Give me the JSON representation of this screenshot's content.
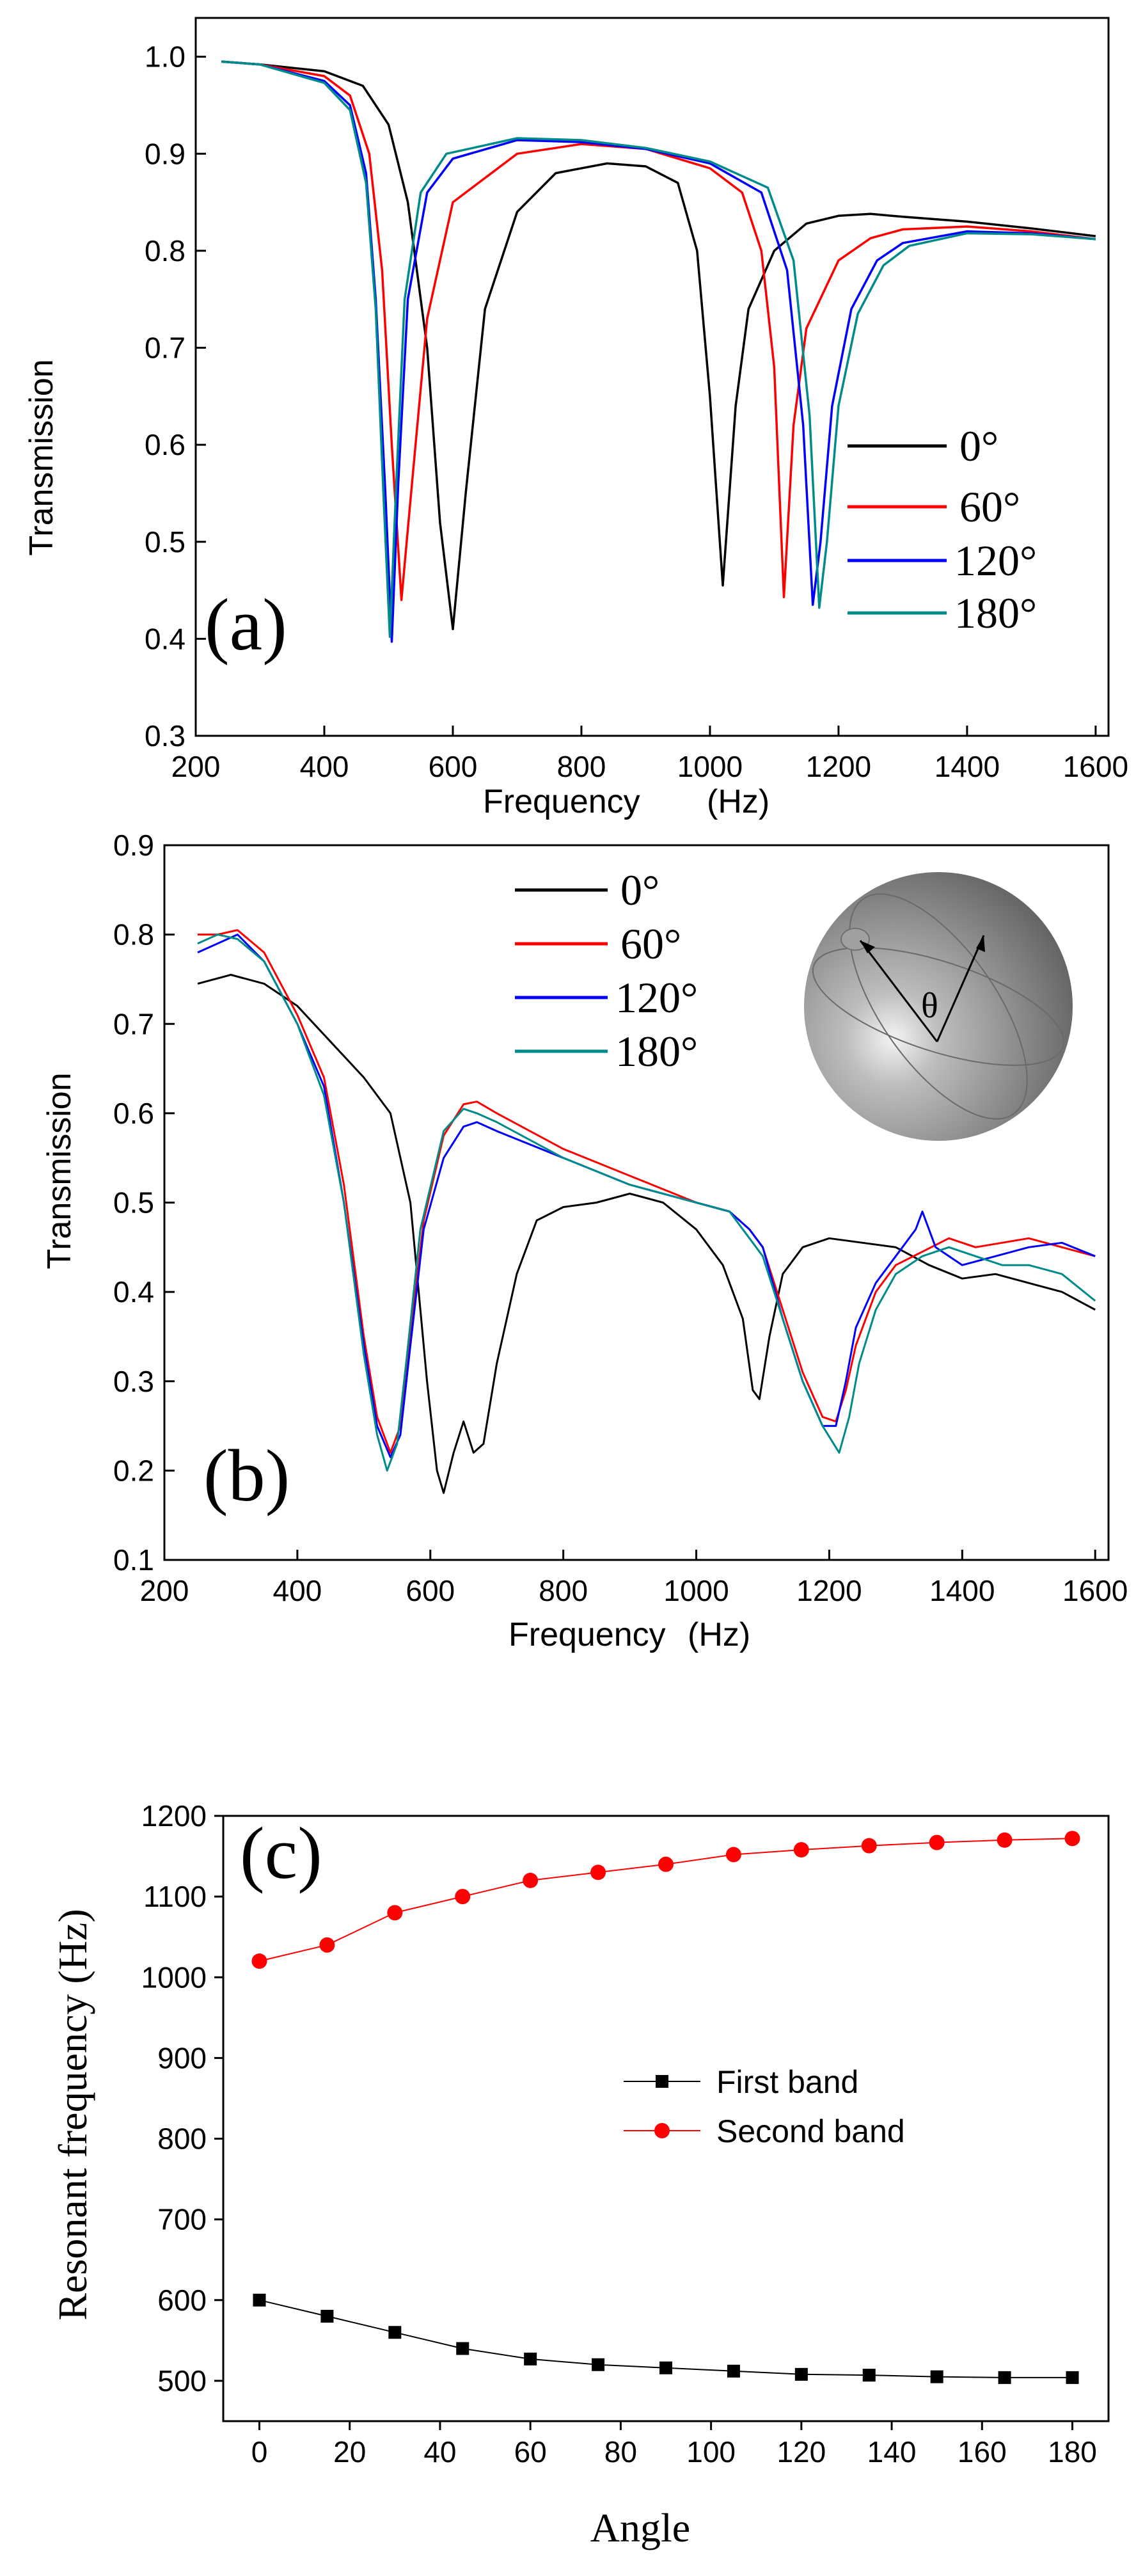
{
  "chart_data": [
    {
      "type": "line",
      "panel_label": "(a)",
      "xlabel": "Frequency",
      "xunit": "(Hz)",
      "ylabel": "Transmission",
      "xlim": [
        200,
        1620
      ],
      "ylim": [
        0.3,
        1.04
      ],
      "x_ticks": [
        200,
        400,
        600,
        800,
        1000,
        1200,
        1400,
        1600
      ],
      "x_tick_labels": [
        "200",
        "400",
        "600",
        "800",
        "1000",
        "1200",
        "1400",
        "1600"
      ],
      "y_ticks": [
        0.3,
        0.4,
        0.5,
        0.6,
        0.7,
        0.8,
        0.9,
        1.0
      ],
      "y_tick_labels": [
        "0.3",
        "0.4",
        "0.5",
        "0.6",
        "0.7",
        "0.8",
        "0.9",
        "1.0"
      ],
      "legend_position": "right",
      "series": [
        {
          "name": "0°",
          "color": "#000000",
          "x": [
            240,
            300,
            400,
            460,
            500,
            530,
            560,
            580,
            600,
            620,
            650,
            700,
            760,
            840,
            900,
            950,
            980,
            1000,
            1020,
            1040,
            1060,
            1100,
            1150,
            1200,
            1250,
            1300,
            1400,
            1500,
            1600
          ],
          "y": [
            0.995,
            0.992,
            0.985,
            0.97,
            0.93,
            0.85,
            0.7,
            0.52,
            0.41,
            0.55,
            0.74,
            0.84,
            0.88,
            0.89,
            0.887,
            0.87,
            0.8,
            0.65,
            0.455,
            0.64,
            0.74,
            0.8,
            0.828,
            0.836,
            0.838,
            0.835,
            0.83,
            0.823,
            0.815
          ]
        },
        {
          "name": "60°",
          "color": "#ff0000",
          "x": [
            240,
            300,
            400,
            440,
            470,
            490,
            505,
            520,
            535,
            560,
            600,
            700,
            800,
            900,
            1000,
            1050,
            1080,
            1100,
            1115,
            1130,
            1150,
            1200,
            1250,
            1300,
            1400,
            1500,
            1600
          ],
          "y": [
            0.995,
            0.992,
            0.98,
            0.96,
            0.9,
            0.78,
            0.6,
            0.44,
            0.55,
            0.73,
            0.85,
            0.9,
            0.91,
            0.905,
            0.885,
            0.86,
            0.8,
            0.68,
            0.443,
            0.62,
            0.72,
            0.79,
            0.813,
            0.822,
            0.825,
            0.82,
            0.812
          ]
        },
        {
          "name": "120°",
          "color": "#0000ff",
          "x": [
            240,
            300,
            400,
            440,
            465,
            480,
            495,
            505,
            515,
            530,
            560,
            600,
            700,
            800,
            900,
            1000,
            1080,
            1120,
            1145,
            1160,
            1172,
            1190,
            1220,
            1260,
            1300,
            1400,
            1500,
            1600
          ],
          "y": [
            0.995,
            0.992,
            0.975,
            0.95,
            0.88,
            0.75,
            0.55,
            0.397,
            0.56,
            0.75,
            0.86,
            0.895,
            0.914,
            0.912,
            0.905,
            0.89,
            0.86,
            0.78,
            0.62,
            0.435,
            0.5,
            0.64,
            0.74,
            0.79,
            0.808,
            0.82,
            0.818,
            0.812
          ]
        },
        {
          "name": "180°",
          "color": "#008b8b",
          "x": [
            240,
            300,
            400,
            440,
            465,
            480,
            492,
            502,
            512,
            525,
            550,
            590,
            700,
            800,
            900,
            1000,
            1090,
            1130,
            1155,
            1170,
            1182,
            1200,
            1230,
            1270,
            1310,
            1400,
            1500,
            1600
          ],
          "y": [
            0.995,
            0.992,
            0.973,
            0.945,
            0.87,
            0.74,
            0.55,
            0.402,
            0.56,
            0.75,
            0.86,
            0.9,
            0.916,
            0.914,
            0.906,
            0.892,
            0.865,
            0.79,
            0.63,
            0.432,
            0.5,
            0.64,
            0.735,
            0.785,
            0.805,
            0.818,
            0.817,
            0.812
          ]
        }
      ]
    },
    {
      "type": "line",
      "panel_label": "(b)",
      "xlabel": "Frequency",
      "xunit": "(Hz)",
      "ylabel": "Transmission",
      "xlim": [
        200,
        1620
      ],
      "ylim": [
        0.1,
        0.9
      ],
      "x_ticks": [
        200,
        400,
        600,
        800,
        1000,
        1200,
        1400,
        1600
      ],
      "x_tick_labels": [
        "200",
        "400",
        "600",
        "800",
        "1000",
        "1200",
        "1400",
        "1600"
      ],
      "y_ticks": [
        0.1,
        0.2,
        0.3,
        0.4,
        0.5,
        0.6,
        0.7,
        0.8,
        0.9
      ],
      "y_tick_labels": [
        "0.1",
        "0.2",
        "0.3",
        "0.4",
        "0.5",
        "0.6",
        "0.7",
        "0.8",
        "0.9"
      ],
      "legend_position": "top-center",
      "inset": {
        "description": "gray sphere with hole",
        "angle_label": "θ"
      },
      "series": [
        {
          "name": "0°",
          "color": "#000000",
          "x": [
            250,
            300,
            350,
            400,
            450,
            500,
            540,
            570,
            595,
            610,
            620,
            635,
            650,
            665,
            680,
            700,
            730,
            760,
            800,
            850,
            900,
            950,
            1000,
            1040,
            1070,
            1085,
            1095,
            1110,
            1130,
            1160,
            1200,
            1250,
            1300,
            1350,
            1400,
            1450,
            1500,
            1550,
            1600
          ],
          "y": [
            0.745,
            0.755,
            0.745,
            0.72,
            0.68,
            0.64,
            0.6,
            0.5,
            0.3,
            0.2,
            0.175,
            0.22,
            0.255,
            0.22,
            0.23,
            0.32,
            0.42,
            0.48,
            0.495,
            0.5,
            0.51,
            0.5,
            0.47,
            0.43,
            0.37,
            0.29,
            0.28,
            0.35,
            0.42,
            0.45,
            0.46,
            0.455,
            0.45,
            0.43,
            0.415,
            0.42,
            0.41,
            0.4,
            0.38
          ]
        },
        {
          "name": "60°",
          "color": "#ff0000",
          "x": [
            250,
            280,
            310,
            350,
            400,
            440,
            470,
            500,
            520,
            540,
            555,
            570,
            590,
            620,
            650,
            670,
            700,
            800,
            900,
            1000,
            1050,
            1080,
            1100,
            1130,
            1160,
            1190,
            1210,
            1225,
            1240,
            1270,
            1300,
            1340,
            1380,
            1420,
            1460,
            1500,
            1550,
            1600
          ],
          "y": [
            0.8,
            0.8,
            0.805,
            0.78,
            0.71,
            0.64,
            0.52,
            0.35,
            0.26,
            0.22,
            0.25,
            0.35,
            0.48,
            0.575,
            0.61,
            0.613,
            0.6,
            0.56,
            0.53,
            0.5,
            0.49,
            0.47,
            0.45,
            0.38,
            0.31,
            0.26,
            0.255,
            0.29,
            0.34,
            0.4,
            0.43,
            0.445,
            0.46,
            0.45,
            0.455,
            0.46,
            0.45,
            0.44
          ]
        },
        {
          "name": "120°",
          "color": "#0000ff",
          "x": [
            250,
            280,
            310,
            350,
            400,
            440,
            470,
            500,
            520,
            540,
            555,
            570,
            590,
            620,
            650,
            670,
            700,
            800,
            900,
            1000,
            1050,
            1080,
            1100,
            1130,
            1160,
            1190,
            1210,
            1225,
            1240,
            1270,
            1300,
            1330,
            1340,
            1360,
            1400,
            1450,
            1500,
            1550,
            1600
          ],
          "y": [
            0.78,
            0.79,
            0.8,
            0.77,
            0.7,
            0.63,
            0.5,
            0.34,
            0.25,
            0.215,
            0.24,
            0.34,
            0.47,
            0.55,
            0.585,
            0.59,
            0.58,
            0.55,
            0.52,
            0.5,
            0.49,
            0.47,
            0.45,
            0.37,
            0.3,
            0.25,
            0.25,
            0.3,
            0.36,
            0.41,
            0.44,
            0.47,
            0.49,
            0.45,
            0.43,
            0.44,
            0.45,
            0.455,
            0.44
          ]
        },
        {
          "name": "180°",
          "color": "#008b8b",
          "x": [
            250,
            280,
            310,
            350,
            400,
            440,
            470,
            500,
            520,
            535,
            550,
            565,
            585,
            620,
            650,
            670,
            700,
            800,
            900,
            1000,
            1050,
            1080,
            1100,
            1130,
            1160,
            1190,
            1215,
            1230,
            1245,
            1270,
            1300,
            1340,
            1380,
            1420,
            1460,
            1500,
            1550,
            1600
          ],
          "y": [
            0.79,
            0.8,
            0.795,
            0.77,
            0.7,
            0.62,
            0.5,
            0.33,
            0.24,
            0.2,
            0.23,
            0.33,
            0.47,
            0.58,
            0.605,
            0.6,
            0.59,
            0.55,
            0.52,
            0.5,
            0.49,
            0.46,
            0.44,
            0.37,
            0.3,
            0.25,
            0.22,
            0.26,
            0.32,
            0.38,
            0.42,
            0.44,
            0.45,
            0.44,
            0.43,
            0.43,
            0.42,
            0.39
          ]
        }
      ]
    },
    {
      "type": "line",
      "panel_label": "(c)",
      "xlabel": "Angle",
      "ylabel": "Resonant frequency  (Hz)",
      "xlim": [
        -8,
        188
      ],
      "ylim": [
        450,
        1200
      ],
      "x_ticks": [
        0,
        20,
        40,
        60,
        80,
        100,
        120,
        140,
        160,
        180
      ],
      "x_tick_labels": [
        "0",
        "20",
        "40",
        "60",
        "80",
        "100",
        "120",
        "140",
        "160",
        "180"
      ],
      "y_ticks": [
        500,
        600,
        700,
        800,
        900,
        1000,
        1100,
        1200
      ],
      "y_tick_labels": [
        "500",
        "600",
        "700",
        "800",
        "900",
        "1000",
        "1100",
        "1200"
      ],
      "legend_position": "center-right",
      "series": [
        {
          "name": "First band",
          "color": "#000000",
          "marker": "square",
          "x": [
            0,
            15,
            30,
            45,
            60,
            75,
            90,
            105,
            120,
            135,
            150,
            165,
            180
          ],
          "y": [
            600,
            580,
            560,
            540,
            527,
            520,
            516,
            512,
            508,
            507,
            505,
            504,
            504
          ]
        },
        {
          "name": "Second band",
          "color": "#ff0000",
          "marker": "circle",
          "x": [
            0,
            15,
            30,
            45,
            60,
            75,
            90,
            105,
            120,
            135,
            150,
            165,
            180
          ],
          "y": [
            1020,
            1040,
            1080,
            1100,
            1120,
            1130,
            1140,
            1152,
            1158,
            1163,
            1167,
            1170,
            1172
          ]
        }
      ]
    }
  ]
}
